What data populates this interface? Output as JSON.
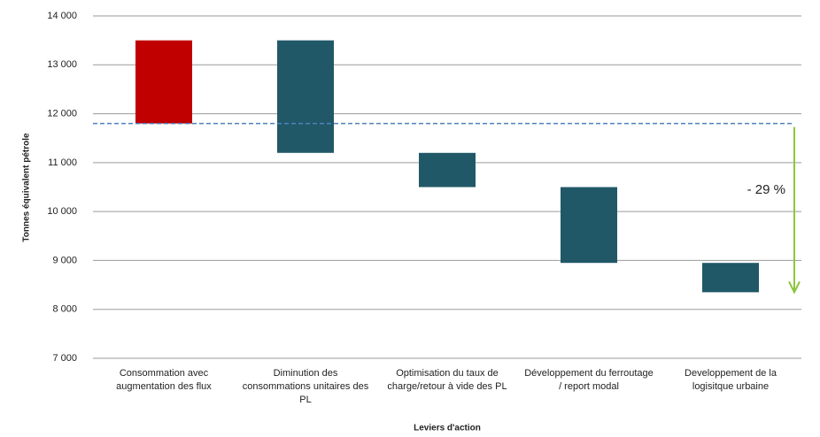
{
  "chart_data": {
    "type": "waterfall",
    "x_label": "Leviers d'action",
    "y_label": "Tonnes équivalent pétrole",
    "categories": [
      "Consommation avec augmentation des flux",
      "Diminution des consommations unitaires des PL",
      "Optimisation du taux de charge/retour à vide des PL",
      "Développement du ferroutage / report modal",
      "Developpement de la logisitque urbaine"
    ],
    "baseline": 11800,
    "values": [
      1700,
      -2300,
      -700,
      -1550,
      -600
    ],
    "colors": [
      "#c00000",
      "#215868",
      "#215868",
      "#215868",
      "#215868"
    ],
    "baseline_color": "#4f81bd",
    "annotation": "- 29 %",
    "annotation_color": "#8cc63f",
    "ylim": [
      7000,
      14000
    ],
    "yticks": [
      {
        "value": 7000,
        "label": "7 000"
      },
      {
        "value": 8000,
        "label": "8 000"
      },
      {
        "value": 9000,
        "label": "9 000"
      },
      {
        "value": 10000,
        "label": "10 000"
      },
      {
        "value": 11000,
        "label": "11 000"
      },
      {
        "value": 12000,
        "label": "12 000"
      },
      {
        "value": 13000,
        "label": "13 000"
      },
      {
        "value": 14000,
        "label": "14 000"
      }
    ],
    "grid": true
  }
}
